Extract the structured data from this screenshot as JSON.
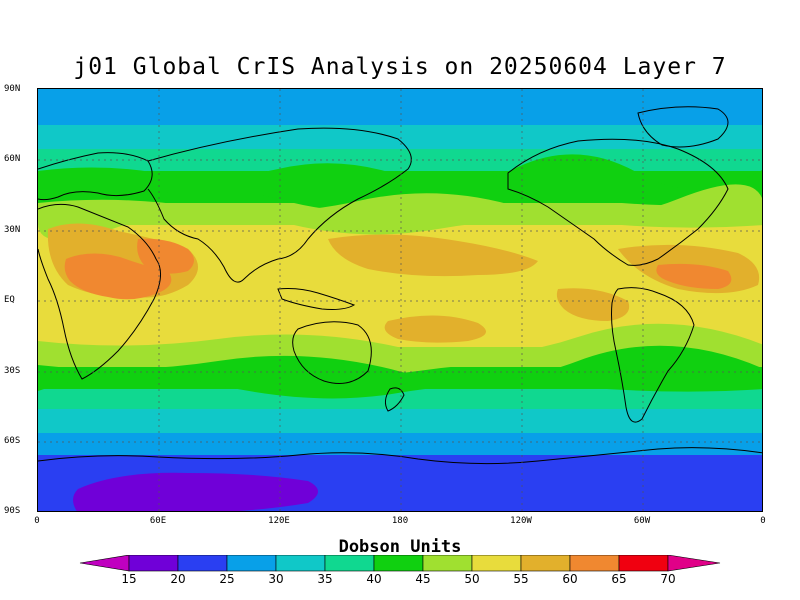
{
  "chart_data": {
    "type": "heatmap",
    "title": "j01 Global CrIS Analysis on 20250604 Layer 7",
    "x_axis": {
      "range": [
        0,
        360
      ],
      "ticks": [
        "0",
        "60E",
        "120E",
        "180",
        "120W",
        "60W",
        "0"
      ]
    },
    "y_axis": {
      "range": [
        -90,
        90
      ],
      "ticks": [
        "90N",
        "60N",
        "30N",
        "EQ",
        "30S",
        "60S",
        "90S"
      ]
    },
    "grid": true,
    "colorbar": {
      "label": "Dobson Units",
      "levels": [
        15,
        20,
        25,
        30,
        35,
        40,
        45,
        50,
        55,
        60,
        65,
        70
      ],
      "colors": [
        "#c000c0",
        "#7000d8",
        "#2a3ff2",
        "#08a0e8",
        "#10c8c8",
        "#10d890",
        "#10d010",
        "#a0e030",
        "#e8dc3c",
        "#e2b02c",
        "#f08830",
        "#f00010",
        "#e00088"
      ],
      "orientation": "horizontal",
      "placement": "bottom"
    },
    "zonal_bands": [
      {
        "lat": [
          75,
          90
        ],
        "dobson": "25-30"
      },
      {
        "lat": [
          66,
          75
        ],
        "dobson": "30-35"
      },
      {
        "lat": [
          58,
          66
        ],
        "dobson": "35-40"
      },
      {
        "lat": [
          44,
          58
        ],
        "dobson": "40-45"
      },
      {
        "lat": [
          34,
          44
        ],
        "dobson": "45-50"
      },
      {
        "lat": [
          -22,
          34
        ],
        "dobson": "50-55"
      },
      {
        "lat": [
          -32,
          -22
        ],
        "dobson": "45-50"
      },
      {
        "lat": [
          -40,
          -32
        ],
        "dobson": "40-45"
      },
      {
        "lat": [
          -48,
          -40
        ],
        "dobson": "35-40"
      },
      {
        "lat": [
          -58,
          -48
        ],
        "dobson": "30-35"
      },
      {
        "lat": [
          -66,
          -58
        ],
        "dobson": "25-30"
      },
      {
        "lat": [
          -76,
          -66
        ],
        "dobson": "20-25"
      },
      {
        "lat": [
          -90,
          -76
        ],
        "dobson": "15-20"
      }
    ]
  }
}
